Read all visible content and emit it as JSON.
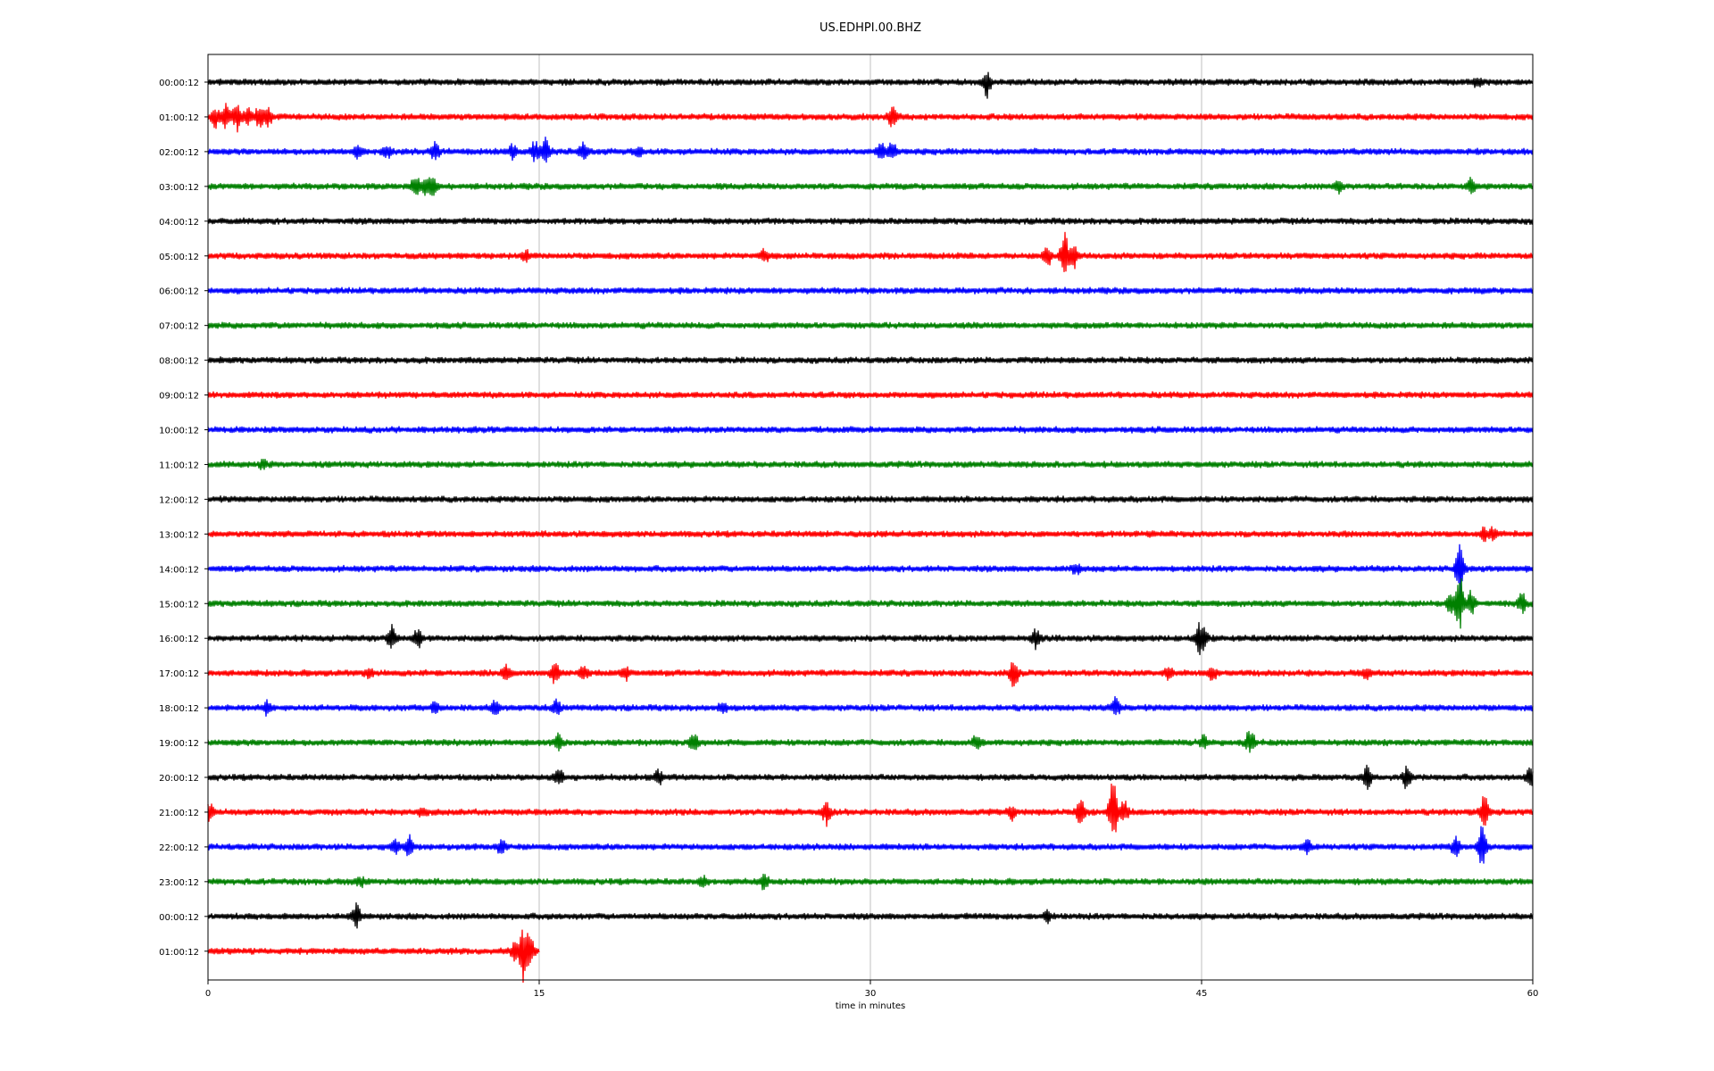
{
  "chart_data": {
    "type": "line",
    "title": "US.EDHPI.00.BHZ",
    "xlabel": "time in minutes",
    "ylabel": "",
    "xlim": [
      0,
      60
    ],
    "x_ticks": [
      0,
      15,
      30,
      45,
      60
    ],
    "grid": "vertical at x ticks",
    "colors": [
      "#000000",
      "#ff0000",
      "#0000ff",
      "#008000"
    ],
    "rows": [
      {
        "label": "00:00:12",
        "end": 60,
        "spikes": [
          [
            35.3,
            16
          ],
          [
            57.5,
            5
          ]
        ]
      },
      {
        "label": "01:00:12",
        "end": 60,
        "spikes": [
          [
            0.3,
            14
          ],
          [
            0.8,
            18
          ],
          [
            1.3,
            16
          ],
          [
            1.8,
            14
          ],
          [
            2.3,
            15
          ],
          [
            2.7,
            14
          ],
          [
            31.0,
            18
          ]
        ]
      },
      {
        "label": "02:00:12",
        "end": 60,
        "spikes": [
          [
            6.8,
            8
          ],
          [
            8.1,
            8
          ],
          [
            10.3,
            10
          ],
          [
            13.8,
            10
          ],
          [
            14.8,
            14
          ],
          [
            15.3,
            18
          ],
          [
            17.0,
            12
          ],
          [
            19.5,
            6
          ],
          [
            30.5,
            10
          ],
          [
            31.0,
            12
          ]
        ]
      },
      {
        "label": "03:00:12",
        "end": 60,
        "spikes": [
          [
            9.4,
            14
          ],
          [
            9.9,
            12
          ],
          [
            10.2,
            10
          ],
          [
            51.2,
            8
          ],
          [
            57.2,
            12
          ]
        ]
      },
      {
        "label": "04:00:12",
        "end": 60,
        "spikes": []
      },
      {
        "label": "05:00:12",
        "end": 60,
        "spikes": [
          [
            14.4,
            5
          ],
          [
            25.2,
            8
          ],
          [
            38.0,
            12
          ],
          [
            38.8,
            30
          ],
          [
            39.2,
            14
          ]
        ]
      },
      {
        "label": "06:00:12",
        "end": 60,
        "spikes": []
      },
      {
        "label": "07:00:12",
        "end": 60,
        "spikes": []
      },
      {
        "label": "08:00:12",
        "end": 60,
        "spikes": []
      },
      {
        "label": "09:00:12",
        "end": 60,
        "spikes": []
      },
      {
        "label": "10:00:12",
        "end": 60,
        "spikes": []
      },
      {
        "label": "11:00:12",
        "end": 60,
        "spikes": [
          [
            2.5,
            6
          ]
        ]
      },
      {
        "label": "12:00:12",
        "end": 60,
        "spikes": []
      },
      {
        "label": "13:00:12",
        "end": 60,
        "spikes": [
          [
            57.8,
            8
          ],
          [
            58.2,
            6
          ]
        ]
      },
      {
        "label": "14:00:12",
        "end": 60,
        "spikes": [
          [
            39.3,
            6
          ],
          [
            56.7,
            34
          ]
        ]
      },
      {
        "label": "15:00:12",
        "end": 60,
        "spikes": [
          [
            56.3,
            12
          ],
          [
            56.7,
            36
          ],
          [
            57.2,
            14
          ],
          [
            59.5,
            12
          ]
        ]
      },
      {
        "label": "16:00:12",
        "end": 60,
        "spikes": [
          [
            8.3,
            14
          ],
          [
            9.5,
            12
          ],
          [
            37.5,
            12
          ],
          [
            44.9,
            18
          ],
          [
            45.1,
            12
          ]
        ]
      },
      {
        "label": "17:00:12",
        "end": 60,
        "spikes": [
          [
            7.3,
            6
          ],
          [
            13.5,
            10
          ],
          [
            15.7,
            14
          ],
          [
            17.0,
            10
          ],
          [
            18.9,
            8
          ],
          [
            36.5,
            18
          ],
          [
            43.5,
            8
          ],
          [
            45.5,
            8
          ],
          [
            52.5,
            6
          ]
        ]
      },
      {
        "label": "18:00:12",
        "end": 60,
        "spikes": [
          [
            2.7,
            8
          ],
          [
            10.3,
            8
          ],
          [
            13.0,
            10
          ],
          [
            15.8,
            8
          ],
          [
            23.3,
            6
          ],
          [
            41.1,
            12
          ]
        ]
      },
      {
        "label": "19:00:12",
        "end": 60,
        "spikes": [
          [
            15.9,
            10
          ],
          [
            22.0,
            12
          ],
          [
            34.8,
            8
          ],
          [
            45.1,
            8
          ],
          [
            47.2,
            16
          ]
        ]
      },
      {
        "label": "20:00:12",
        "end": 60,
        "spikes": [
          [
            15.9,
            12
          ],
          [
            20.4,
            8
          ],
          [
            52.5,
            12
          ],
          [
            54.3,
            14
          ],
          [
            59.9,
            14
          ]
        ]
      },
      {
        "label": "21:00:12",
        "end": 60,
        "spikes": [
          [
            0.1,
            12
          ],
          [
            9.7,
            6
          ],
          [
            28.0,
            14
          ],
          [
            36.4,
            8
          ],
          [
            39.5,
            16
          ],
          [
            41.0,
            48
          ],
          [
            41.5,
            14
          ],
          [
            57.8,
            24
          ]
        ]
      },
      {
        "label": "22:00:12",
        "end": 60,
        "spikes": [
          [
            8.5,
            8
          ],
          [
            9.1,
            12
          ],
          [
            13.3,
            10
          ],
          [
            49.8,
            8
          ],
          [
            56.5,
            12
          ],
          [
            57.7,
            30
          ]
        ]
      },
      {
        "label": "23:00:12",
        "end": 60,
        "spikes": [
          [
            6.9,
            6
          ],
          [
            22.4,
            6
          ],
          [
            25.2,
            10
          ]
        ]
      },
      {
        "label": "00:00:12",
        "end": 60,
        "spikes": [
          [
            6.7,
            14
          ],
          [
            38.0,
            8
          ]
        ]
      },
      {
        "label": "01:00:12",
        "end": 15,
        "spikes": [
          [
            13.9,
            14
          ],
          [
            14.3,
            38
          ],
          [
            14.6,
            16
          ]
        ]
      }
    ]
  }
}
